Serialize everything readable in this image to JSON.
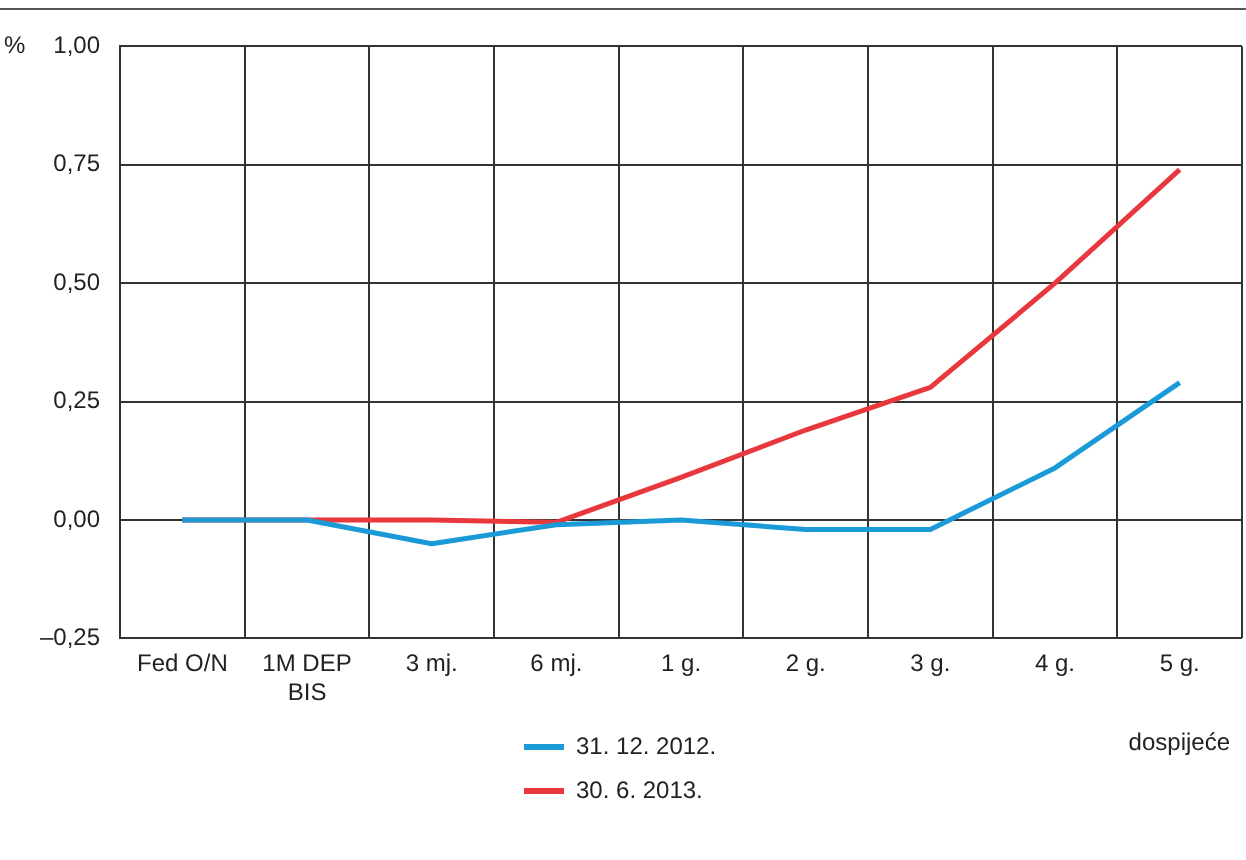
{
  "chart_data": {
    "type": "line",
    "ylabel": "%",
    "xlabel": "dospijeće",
    "categories": [
      "Fed O/N",
      "1M DEP\nBIS",
      "3 mj.",
      "6 mj.",
      "1 g.",
      "2 g.",
      "3 g.",
      "4 g.",
      "5 g."
    ],
    "series": [
      {
        "name": "31. 12. 2012.",
        "color": "#1a9ad6",
        "values": [
          0,
          0,
          -0.05,
          -0.01,
          0,
          -0.02,
          -0.02,
          0.11,
          0.29
        ]
      },
      {
        "name": "30. 6. 2013.",
        "color": "#e8383d",
        "values": [
          0,
          0,
          0,
          -0.005,
          0.09,
          0.19,
          0.28,
          0.5,
          0.74
        ]
      }
    ],
    "ylim": [
      -0.25,
      1
    ],
    "yticks": [
      {
        "value": -0.25,
        "label": "–0,25"
      },
      {
        "value": 0,
        "label": "0,00"
      },
      {
        "value": 0.25,
        "label": "0,25"
      },
      {
        "value": 0.5,
        "label": "0,50"
      },
      {
        "value": 0.75,
        "label": "0,75"
      },
      {
        "value": 1,
        "label": "1,00"
      }
    ],
    "grid": true,
    "legend": "bottom",
    "marker": "none",
    "line_style": "solid"
  }
}
